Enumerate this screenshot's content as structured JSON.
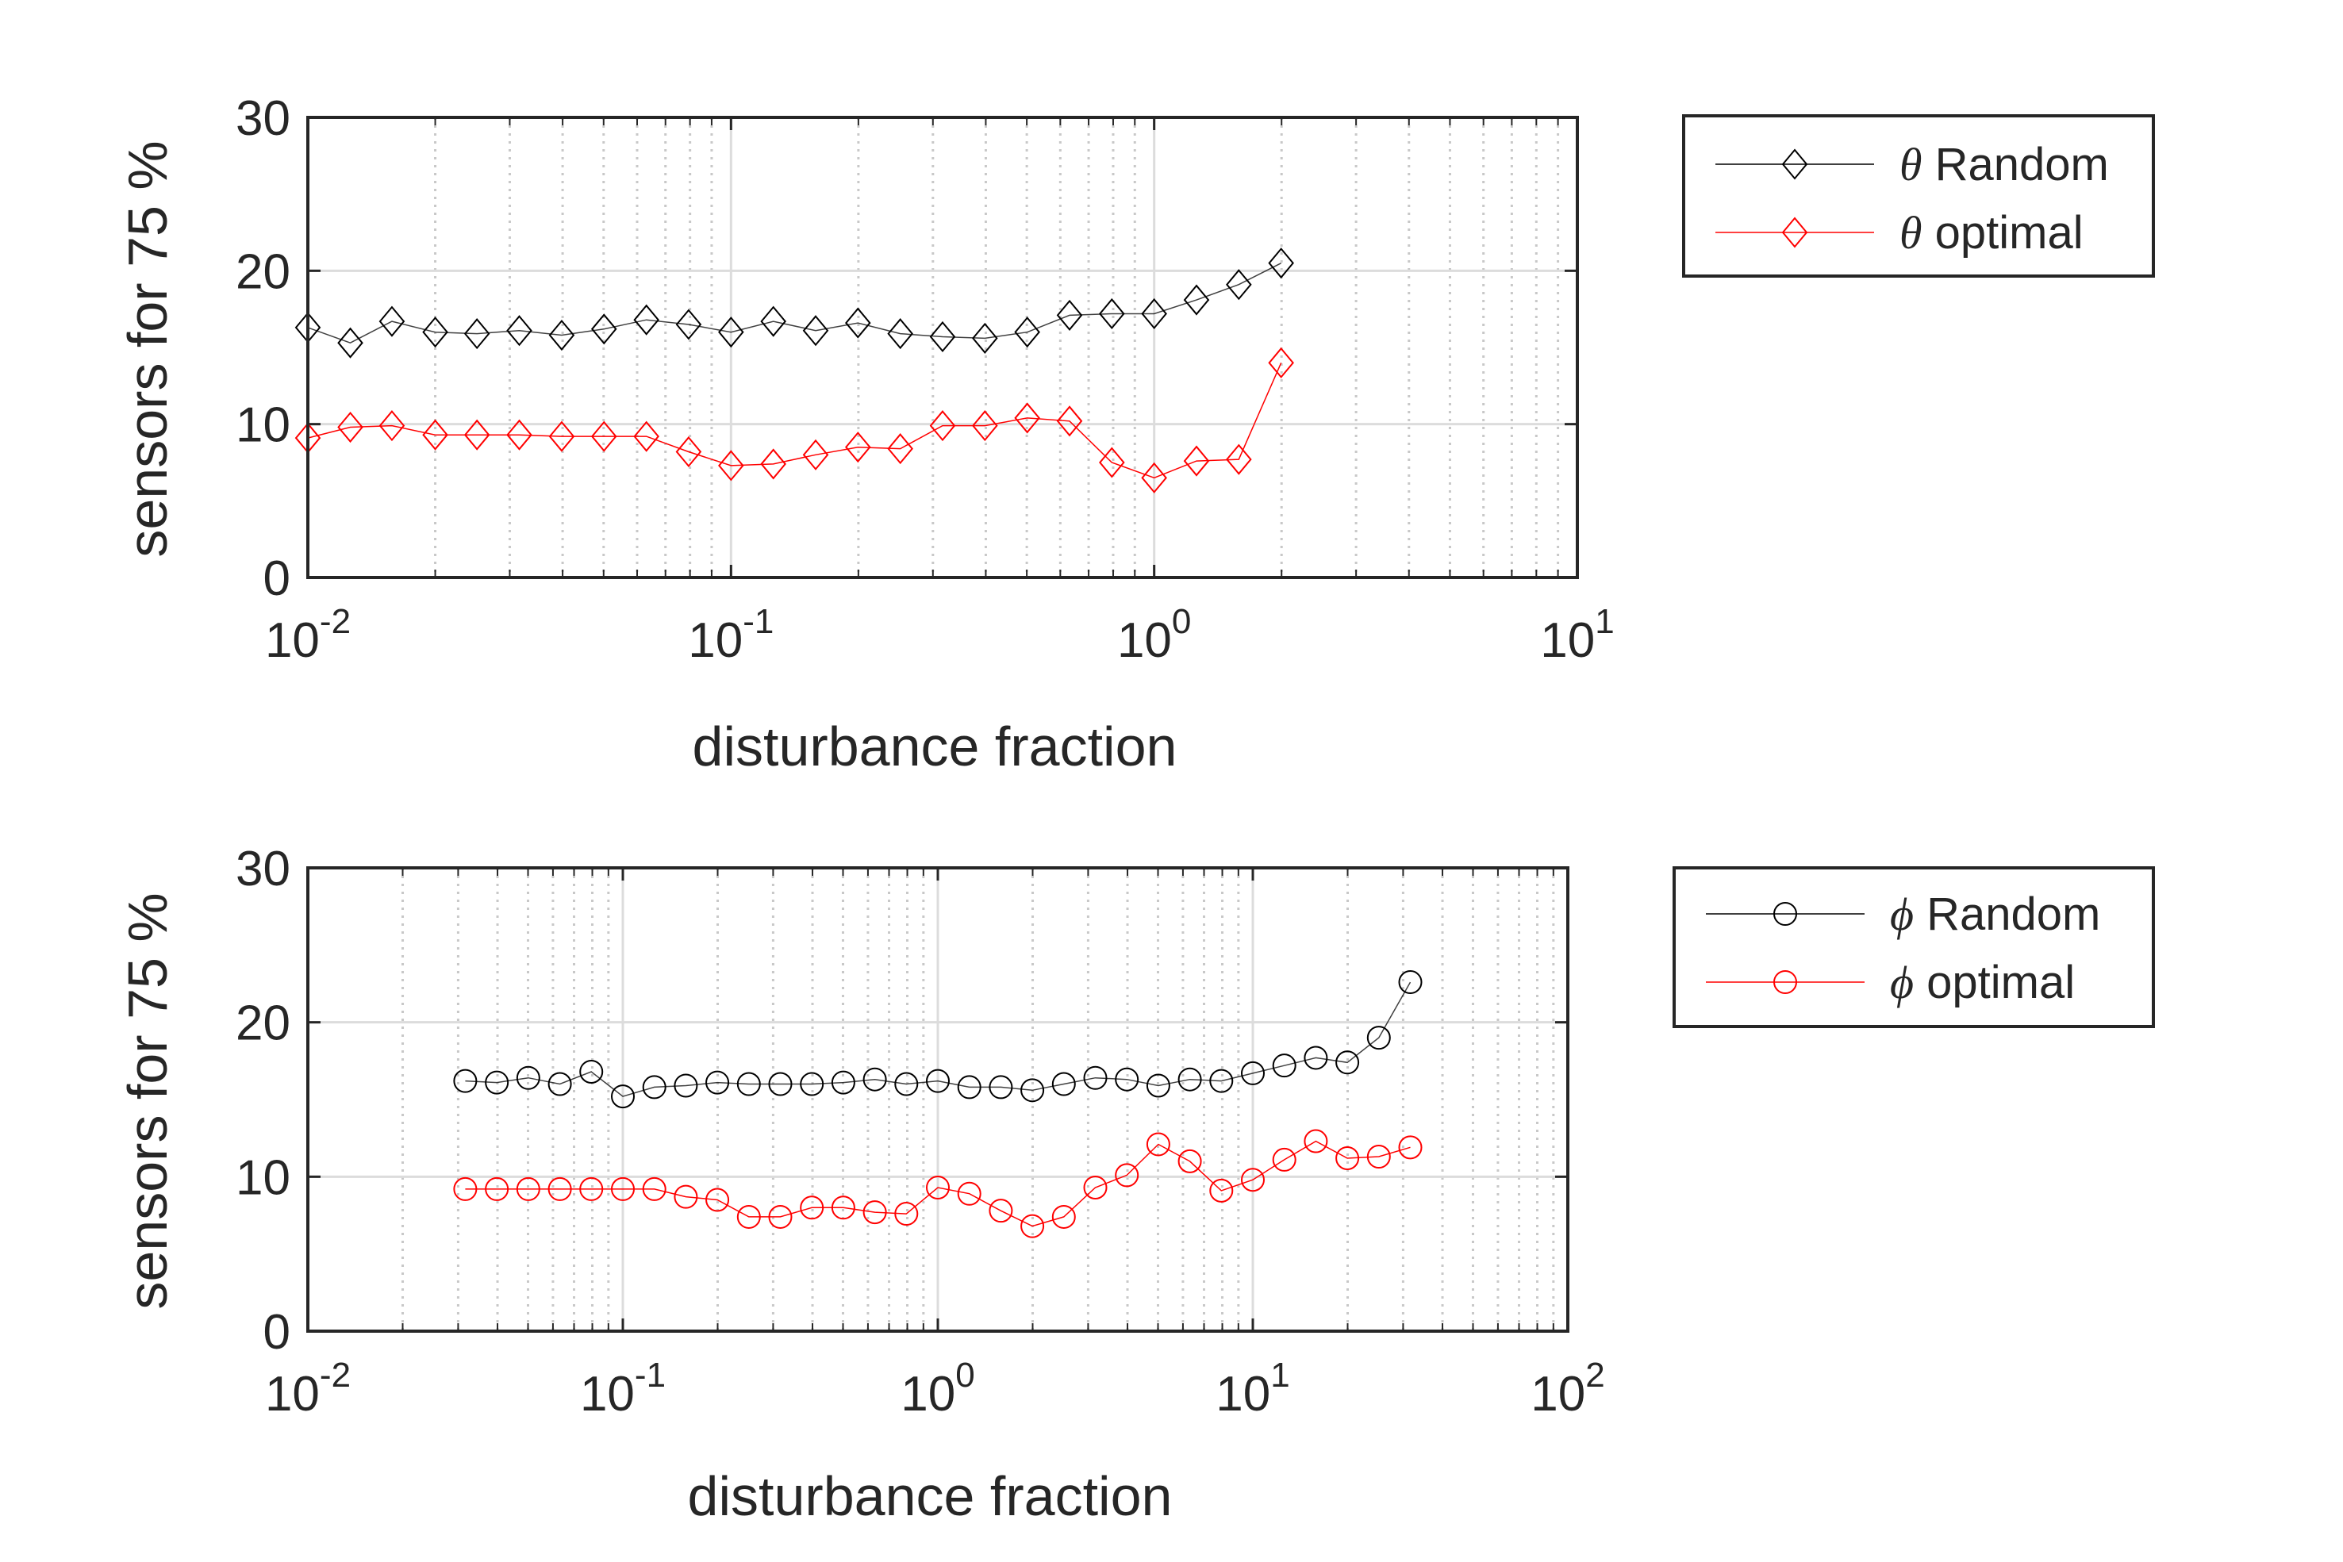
{
  "chart_data": [
    {
      "type": "line",
      "xscale": "log",
      "xlim": [
        0.01,
        10
      ],
      "ylim": [
        0,
        30
      ],
      "xlabel": "disturbance fraction",
      "ylabel": "sensors for 75 %",
      "xtick_labels": [
        {
          "value": 0.01,
          "base": "10",
          "exp": "-2"
        },
        {
          "value": 0.1,
          "base": "10",
          "exp": "-1"
        },
        {
          "value": 1,
          "base": "10",
          "exp": "0"
        },
        {
          "value": 10,
          "base": "10",
          "exp": "1"
        }
      ],
      "ytick_labels": [
        {
          "value": 0,
          "label": "0"
        },
        {
          "value": 10,
          "label": "10"
        },
        {
          "value": 20,
          "label": "20"
        },
        {
          "value": 30,
          "label": "30"
        }
      ],
      "grid": true,
      "legend_position": "outside-right-top",
      "series": [
        {
          "name": "Random",
          "symbol": "θ",
          "color": "#000000",
          "marker": "diamond",
          "x": [
            0.01,
            0.0126,
            0.0158,
            0.02,
            0.0251,
            0.0316,
            0.0398,
            0.0501,
            0.0631,
            0.0794,
            0.1,
            0.1259,
            0.1585,
            0.1995,
            0.2512,
            0.3162,
            0.3981,
            0.5012,
            0.631,
            0.7943,
            1.0,
            1.2589,
            1.5849,
            1.9953
          ],
          "y": [
            16.3,
            15.3,
            16.7,
            16.0,
            15.9,
            16.1,
            15.8,
            16.2,
            16.8,
            16.5,
            16.0,
            16.7,
            16.1,
            16.6,
            15.9,
            15.7,
            15.6,
            16.0,
            17.1,
            17.2,
            17.2,
            18.1,
            19.1,
            20.5
          ]
        },
        {
          "name": "optimal",
          "symbol": "θ",
          "color": "#ff0000",
          "marker": "diamond",
          "x": [
            0.01,
            0.0126,
            0.0158,
            0.02,
            0.0251,
            0.0316,
            0.0398,
            0.0501,
            0.0631,
            0.0794,
            0.1,
            0.1259,
            0.1585,
            0.1995,
            0.2512,
            0.3162,
            0.3981,
            0.5012,
            0.631,
            0.7943,
            1.0,
            1.2589,
            1.5849,
            1.9953
          ],
          "y": [
            9.1,
            9.8,
            9.9,
            9.3,
            9.3,
            9.3,
            9.2,
            9.2,
            9.2,
            8.2,
            7.3,
            7.4,
            8.0,
            8.5,
            8.4,
            9.9,
            9.9,
            10.4,
            10.2,
            7.5,
            6.5,
            7.6,
            7.7,
            14.0
          ]
        }
      ]
    },
    {
      "type": "line",
      "xscale": "log",
      "xlim": [
        0.01,
        100
      ],
      "ylim": [
        0,
        30
      ],
      "xlabel": "disturbance fraction",
      "ylabel": "sensors for 75 %",
      "xtick_labels": [
        {
          "value": 0.01,
          "base": "10",
          "exp": "-2"
        },
        {
          "value": 0.1,
          "base": "10",
          "exp": "-1"
        },
        {
          "value": 1,
          "base": "10",
          "exp": "0"
        },
        {
          "value": 10,
          "base": "10",
          "exp": "1"
        },
        {
          "value": 100,
          "base": "10",
          "exp": "2"
        }
      ],
      "ytick_labels": [
        {
          "value": 0,
          "label": "0"
        },
        {
          "value": 10,
          "label": "10"
        },
        {
          "value": 20,
          "label": "20"
        },
        {
          "value": 30,
          "label": "30"
        }
      ],
      "grid": true,
      "legend_position": "outside-right-top",
      "series": [
        {
          "name": "Random",
          "symbol": "ϕ",
          "color": "#000000",
          "marker": "circle",
          "x": [
            0.0316,
            0.0398,
            0.0501,
            0.0631,
            0.0794,
            0.1,
            0.1259,
            0.1585,
            0.1995,
            0.2512,
            0.3162,
            0.3981,
            0.5012,
            0.631,
            0.7943,
            1.0,
            1.2589,
            1.5849,
            1.9953,
            2.5119,
            3.1623,
            3.9811,
            5.0119,
            6.3096,
            7.9433,
            10.0,
            12.589,
            15.849,
            19.953,
            25.119,
            31.623
          ],
          "y": [
            16.2,
            16.1,
            16.4,
            16.0,
            16.8,
            15.2,
            15.8,
            15.9,
            16.1,
            16.0,
            16.0,
            16.0,
            16.1,
            16.3,
            16.0,
            16.2,
            15.8,
            15.8,
            15.6,
            16.0,
            16.4,
            16.3,
            15.9,
            16.3,
            16.2,
            16.7,
            17.2,
            17.7,
            17.4,
            19.0,
            22.6
          ]
        },
        {
          "name": "optimal",
          "symbol": "ϕ",
          "color": "#ff0000",
          "marker": "circle",
          "x": [
            0.0316,
            0.0398,
            0.0501,
            0.0631,
            0.0794,
            0.1,
            0.1259,
            0.1585,
            0.1995,
            0.2512,
            0.3162,
            0.3981,
            0.5012,
            0.631,
            0.7943,
            1.0,
            1.2589,
            1.5849,
            1.9953,
            2.5119,
            3.1623,
            3.9811,
            5.0119,
            6.3096,
            7.9433,
            10.0,
            12.589,
            15.849,
            19.953,
            25.119,
            31.623
          ],
          "y": [
            9.2,
            9.2,
            9.2,
            9.2,
            9.2,
            9.2,
            9.2,
            8.7,
            8.5,
            7.4,
            7.4,
            8.0,
            8.0,
            7.7,
            7.6,
            9.3,
            8.9,
            7.8,
            6.8,
            7.4,
            9.3,
            10.1,
            12.1,
            11.0,
            9.1,
            9.8,
            11.1,
            12.3,
            11.2,
            11.3,
            11.9
          ]
        }
      ]
    }
  ]
}
